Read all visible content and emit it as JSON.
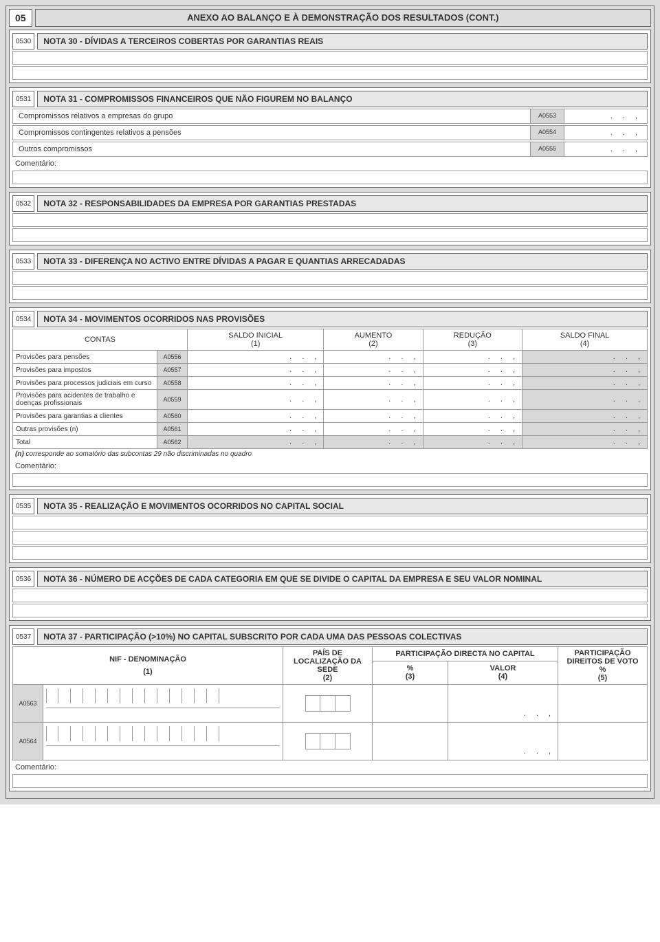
{
  "page_code": "05",
  "page_title": "ANEXO AO BALANÇO E À DEMONSTRAÇÃO DOS RESULTADOS (CONT.)",
  "comentario_label": "Comentário:",
  "dots": ".  .  ,",
  "sections": {
    "s0530": {
      "code": "0530",
      "title": "NOTA 30 - DÍVIDAS A TERCEIROS COBERTAS POR GARANTIAS REAIS"
    },
    "s0531": {
      "code": "0531",
      "title": "NOTA 31 - COMPROMISSOS FINANCEIROS QUE NÃO FIGUREM NO BALANÇO",
      "rows": [
        {
          "label": "Compromissos relativos a empresas do grupo",
          "code": "A0553"
        },
        {
          "label": "Compromissos contingentes relativos a pensões",
          "code": "A0554"
        },
        {
          "label": "Outros compromissos",
          "code": "A0555"
        }
      ]
    },
    "s0532": {
      "code": "0532",
      "title": "NOTA 32 - RESPONSABILIDADES DA EMPRESA POR GARANTIAS PRESTADAS"
    },
    "s0533": {
      "code": "0533",
      "title": "NOTA 33 - DIFERENÇA NO ACTIVO ENTRE DÍVIDAS A PAGAR E QUANTIAS ARRECADADAS"
    },
    "s0534": {
      "code": "0534",
      "title": "NOTA 34 - MOVIMENTOS OCORRIDOS NAS PROVISÕES",
      "header": {
        "contas": "CONTAS",
        "c1": "SALDO INICIAL",
        "c1n": "(1)",
        "c2": "AUMENTO",
        "c2n": "(2)",
        "c3": "REDUÇÃO",
        "c3n": "(3)",
        "c4": "SALDO FINAL",
        "c4n": "(4)"
      },
      "rows": [
        {
          "label": "Provisões para pensões",
          "code": "A0556"
        },
        {
          "label": "Provisões para impostos",
          "code": "A0557"
        },
        {
          "label": "Provisões para processos judiciais em curso",
          "code": "A0558"
        },
        {
          "label": "Provisões para acidentes de trabalho e doenças profissionais",
          "code": "A0559"
        },
        {
          "label": "Provisões para garantias a clientes",
          "code": "A0560"
        },
        {
          "label": "Outras provisões (n)",
          "code": "A0561"
        },
        {
          "label": "Total",
          "code": "A0562"
        }
      ],
      "footnote_prefix": "(n)",
      "footnote": " corresponde ao somatório das subcontas 29 não discriminadas no quadro"
    },
    "s0535": {
      "code": "0535",
      "title": "NOTA 35 - REALIZAÇÃO E MOVIMENTOS OCORRIDOS NO CAPITAL SOCIAL"
    },
    "s0536": {
      "code": "0536",
      "title": "NOTA 36 - NÚMERO DE ACÇÕES DE CADA CATEGORIA EM QUE SE DIVIDE O CAPITAL DA EMPRESA E SEU VALOR NOMINAL"
    },
    "s0537": {
      "code": "0537",
      "title": "NOTA 37 - PARTICIPAÇÃO (>10%) NO CAPITAL SUBSCRITO POR CADA UMA DAS PESSOAS COLECTIVAS",
      "header": {
        "nif": "NIF - DENOMINAÇÃO",
        "nifn": "(1)",
        "pais": "PAÍS DE LOCALIZAÇÃO DA SEDE",
        "paisn": "(2)",
        "part_dir": "PARTICIPAÇÃO DIRECTA NO CAPITAL",
        "pct": "%",
        "pctn": "(3)",
        "valor": "VALOR",
        "valorn": "(4)",
        "voto": "PARTICIPAÇÃO DIREITOS DE VOTO",
        "votopct": "%",
        "voton": "(5)"
      },
      "rows": [
        {
          "code": "A0563"
        },
        {
          "code": "A0564"
        }
      ]
    }
  },
  "colors": {
    "page_bg": "#dddddd",
    "section_bg": "#ffffff",
    "code_bg": "#d8d8d8",
    "border": "#666666",
    "text": "#333333"
  }
}
